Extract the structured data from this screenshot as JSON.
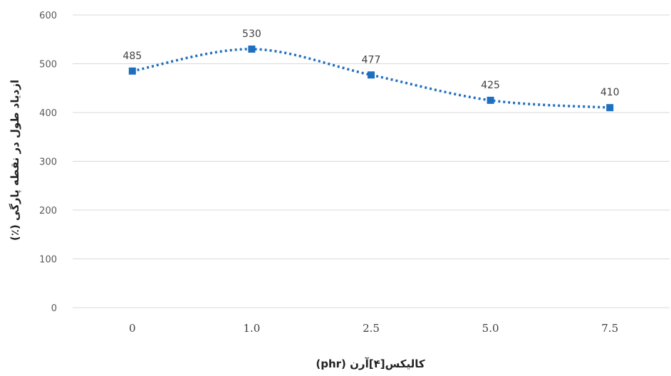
{
  "chart_data": {
    "type": "line",
    "categories": [
      "0",
      "1.0",
      "2.5",
      "5.0",
      "7.5"
    ],
    "series": [
      {
        "values": [
          485,
          530,
          477,
          425,
          410
        ],
        "data_labels": [
          "485",
          "530",
          "477",
          "425",
          "410"
        ],
        "color": "#1f6fc1",
        "line_style": "dotted",
        "smooth": true,
        "marker": "square"
      }
    ],
    "ylim": [
      0,
      600
    ],
    "yticks": [
      "0",
      "100",
      "200",
      "300",
      "400",
      "500",
      "600"
    ],
    "xlabel": "کالیکس[۴]آرن (phr)",
    "ylabel": "ازدیاد طول در نقطه پارگی (٪)",
    "grid": true,
    "legend": "none"
  }
}
